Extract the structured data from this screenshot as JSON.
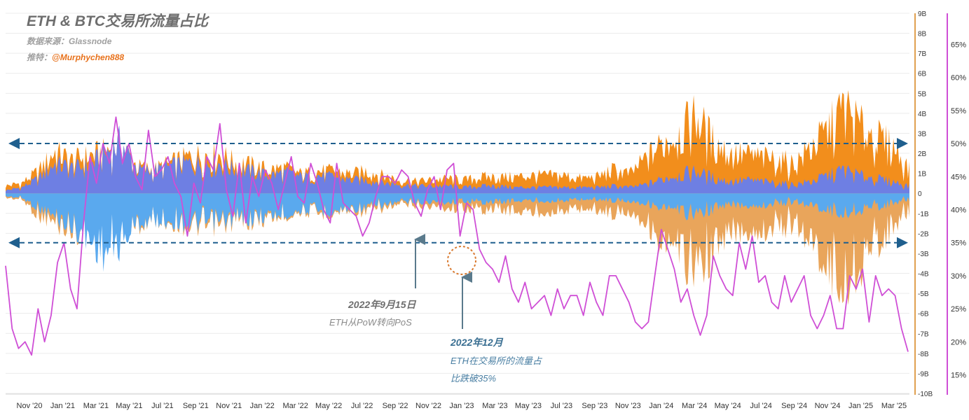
{
  "header": {
    "title": "ETH & BTC交易所流量占比",
    "source_label": "数据来源：",
    "source_value": "Glassnode",
    "twitter_label": "推特：",
    "twitter_handle": "@Murphychen888"
  },
  "colors": {
    "btc_flow": "#f28e1c",
    "btc_flow_negative": "#e9a55b",
    "eth_flow": "#6e7fe3",
    "eth_flow_negative": "#5aa9ee",
    "eth_share_line": "#cf4fd6",
    "reference_line": "#1f5f8e",
    "annotation_arrow": "#5a7a8c",
    "circle_marker": "#d9792e"
  },
  "chart_data": {
    "type": "area",
    "x_tick_labels": [
      "Nov '20",
      "Jan '21",
      "Mar '21",
      "May '21",
      "Jul '21",
      "Sep '21",
      "Nov '21",
      "Jan '22",
      "Mar '22",
      "May '22",
      "Jul '22",
      "Sep '22",
      "Nov '22",
      "Jan '23",
      "Mar '23",
      "May '23",
      "Jul '23",
      "Sep '23",
      "Nov '23",
      "Jan '24",
      "Mar '24",
      "May '24",
      "Jul '24",
      "Sep '24",
      "Nov '24",
      "Jan '25",
      "Mar '25"
    ],
    "y_left_ticks": [
      "9B",
      "8B",
      "7B",
      "6B",
      "5B",
      "4B",
      "3B",
      "2B",
      "1B",
      "0",
      "-1B",
      "-2B",
      "-3B",
      "-4B",
      "-5B",
      "-6B",
      "-7B",
      "-8B",
      "-9B",
      "-10B"
    ],
    "y_left_range": [
      -10,
      9
    ],
    "y_right_ticks": [
      "65%",
      "60%",
      "55%",
      "50%",
      "45%",
      "40%",
      "35%",
      "30%",
      "25%",
      "20%",
      "15%"
    ],
    "y_right_range": [
      12.2,
      69.7
    ],
    "reference_lines_pct": [
      50,
      35
    ],
    "series": [
      {
        "name": "",
        "kind": "btc_inflow_outflow_area",
        "positive_envelope_B": [
          0.5,
          0.7,
          1.5,
          2.8,
          2.2,
          2.5,
          2.8,
          3.4,
          1.8,
          1.6,
          2.0,
          2.4,
          2.6,
          2.6,
          2.1,
          1.9,
          1.6,
          1.7,
          1.3,
          1.5,
          1.5,
          1.3,
          1.5,
          1.2,
          0.9,
          0.8,
          0.9,
          1.0,
          0.9,
          1.1,
          1.1,
          1.1,
          1.2,
          1.2,
          1.2,
          1.0,
          1.1,
          1.6,
          1.3,
          2.4,
          3.4,
          4.1,
          5.3,
          3.6,
          2.7,
          2.6,
          2.4,
          2.3,
          2.0,
          3.1,
          4.2,
          5.8,
          4.5,
          3.8,
          3.2,
          1.6
        ],
        "negative_envelope_B": [
          -0.3,
          -0.4,
          -1.5,
          -2.0,
          -2.5,
          -2.8,
          -3.2,
          -3.0,
          -2.2,
          -1.8,
          -1.9,
          -2.2,
          -2.3,
          -2.2,
          -1.9,
          -1.9,
          -1.7,
          -1.5,
          -1.2,
          -1.4,
          -1.3,
          -1.1,
          -1.3,
          -1.0,
          -0.8,
          -0.8,
          -0.9,
          -1.0,
          -1.0,
          -1.1,
          -1.1,
          -1.2,
          -1.3,
          -1.2,
          -1.2,
          -1.0,
          -1.1,
          -1.4,
          -1.2,
          -2.0,
          -3.6,
          -4.3,
          -5.0,
          -4.2,
          -2.8,
          -2.5,
          -2.5,
          -2.3,
          -2.2,
          -3.2,
          -4.8,
          -6.3,
          -4.8,
          -3.4,
          -2.4,
          -1.2
        ]
      },
      {
        "name": "",
        "kind": "eth_inflow_outflow_area",
        "positive_envelope_B": [
          0.2,
          0.4,
          1.0,
          2.0,
          1.7,
          1.8,
          2.6,
          3.5,
          1.6,
          1.5,
          1.8,
          2.0,
          2.0,
          2.0,
          1.6,
          1.5,
          1.2,
          1.4,
          1.1,
          1.2,
          1.1,
          0.9,
          0.9,
          0.7,
          0.6,
          0.5,
          0.5,
          0.5,
          0.4,
          0.5,
          0.5,
          0.4,
          0.4,
          0.4,
          0.4,
          0.4,
          0.4,
          0.5,
          0.4,
          0.6,
          1.0,
          1.3,
          1.5,
          1.1,
          0.8,
          0.9,
          0.8,
          0.7,
          0.6,
          0.8,
          1.2,
          1.6,
          1.2,
          1.0,
          0.8,
          0.5
        ],
        "negative_envelope_B": [
          -0.2,
          -0.3,
          -1.0,
          -1.6,
          -2.2,
          -3.0,
          -4.0,
          -3.4,
          -2.0,
          -1.8,
          -1.8,
          -2.0,
          -2.0,
          -1.9,
          -1.7,
          -1.7,
          -1.5,
          -1.4,
          -1.1,
          -1.2,
          -1.2,
          -1.0,
          -1.0,
          -0.8,
          -0.6,
          -0.6,
          -0.6,
          -0.6,
          -0.5,
          -0.6,
          -0.6,
          -0.5,
          -0.5,
          -0.5,
          -0.5,
          -0.4,
          -0.4,
          -0.5,
          -0.5,
          -0.7,
          -1.0,
          -1.3,
          -1.4,
          -1.1,
          -0.8,
          -0.8,
          -0.8,
          -0.7,
          -0.6,
          -0.8,
          -1.1,
          -1.4,
          -1.1,
          -0.9,
          -0.7,
          -0.4
        ]
      },
      {
        "name": "",
        "kind": "eth_share_line_pct",
        "values_pct": [
          31.5,
          22,
          19,
          20,
          18,
          25,
          20,
          24,
          32,
          35,
          28,
          25,
          38,
          48,
          44,
          50,
          47,
          54,
          47,
          50,
          45,
          43,
          52,
          45,
          46,
          48,
          44,
          42,
          36,
          44,
          41,
          48,
          46,
          53,
          43,
          39,
          47,
          38,
          45,
          42,
          46,
          44,
          40,
          44,
          48,
          42,
          41,
          47,
          44,
          40,
          38,
          47,
          41,
          40,
          39,
          36,
          38,
          42,
          45,
          45,
          44,
          46,
          45,
          41,
          39,
          43,
          45,
          40,
          46,
          47,
          36,
          41,
          40,
          34,
          32,
          31,
          29,
          33,
          28,
          26,
          29,
          25,
          26,
          27,
          24,
          28,
          25,
          27,
          27,
          24,
          29,
          26,
          24,
          30,
          30,
          28,
          26,
          23,
          22,
          23,
          30,
          37,
          34,
          31,
          26,
          28,
          24,
          21,
          24,
          33,
          30,
          28,
          27,
          35,
          31,
          36,
          29,
          30,
          26,
          25,
          30,
          26,
          28,
          30,
          24,
          22,
          24,
          27,
          22,
          22,
          30,
          28,
          31,
          23,
          30,
          27,
          28,
          27,
          22,
          18.5
        ],
        "annotated_low_pct": 30
      }
    ],
    "annotations": [
      {
        "date": "2022年9月15日",
        "text": "ETH从PoW转向PoS"
      },
      {
        "date": "2022年12月",
        "text_line1": "ETH在交易所的流量占",
        "text_line2": "比跌破35%"
      }
    ],
    "grid": true,
    "legend": "none"
  }
}
